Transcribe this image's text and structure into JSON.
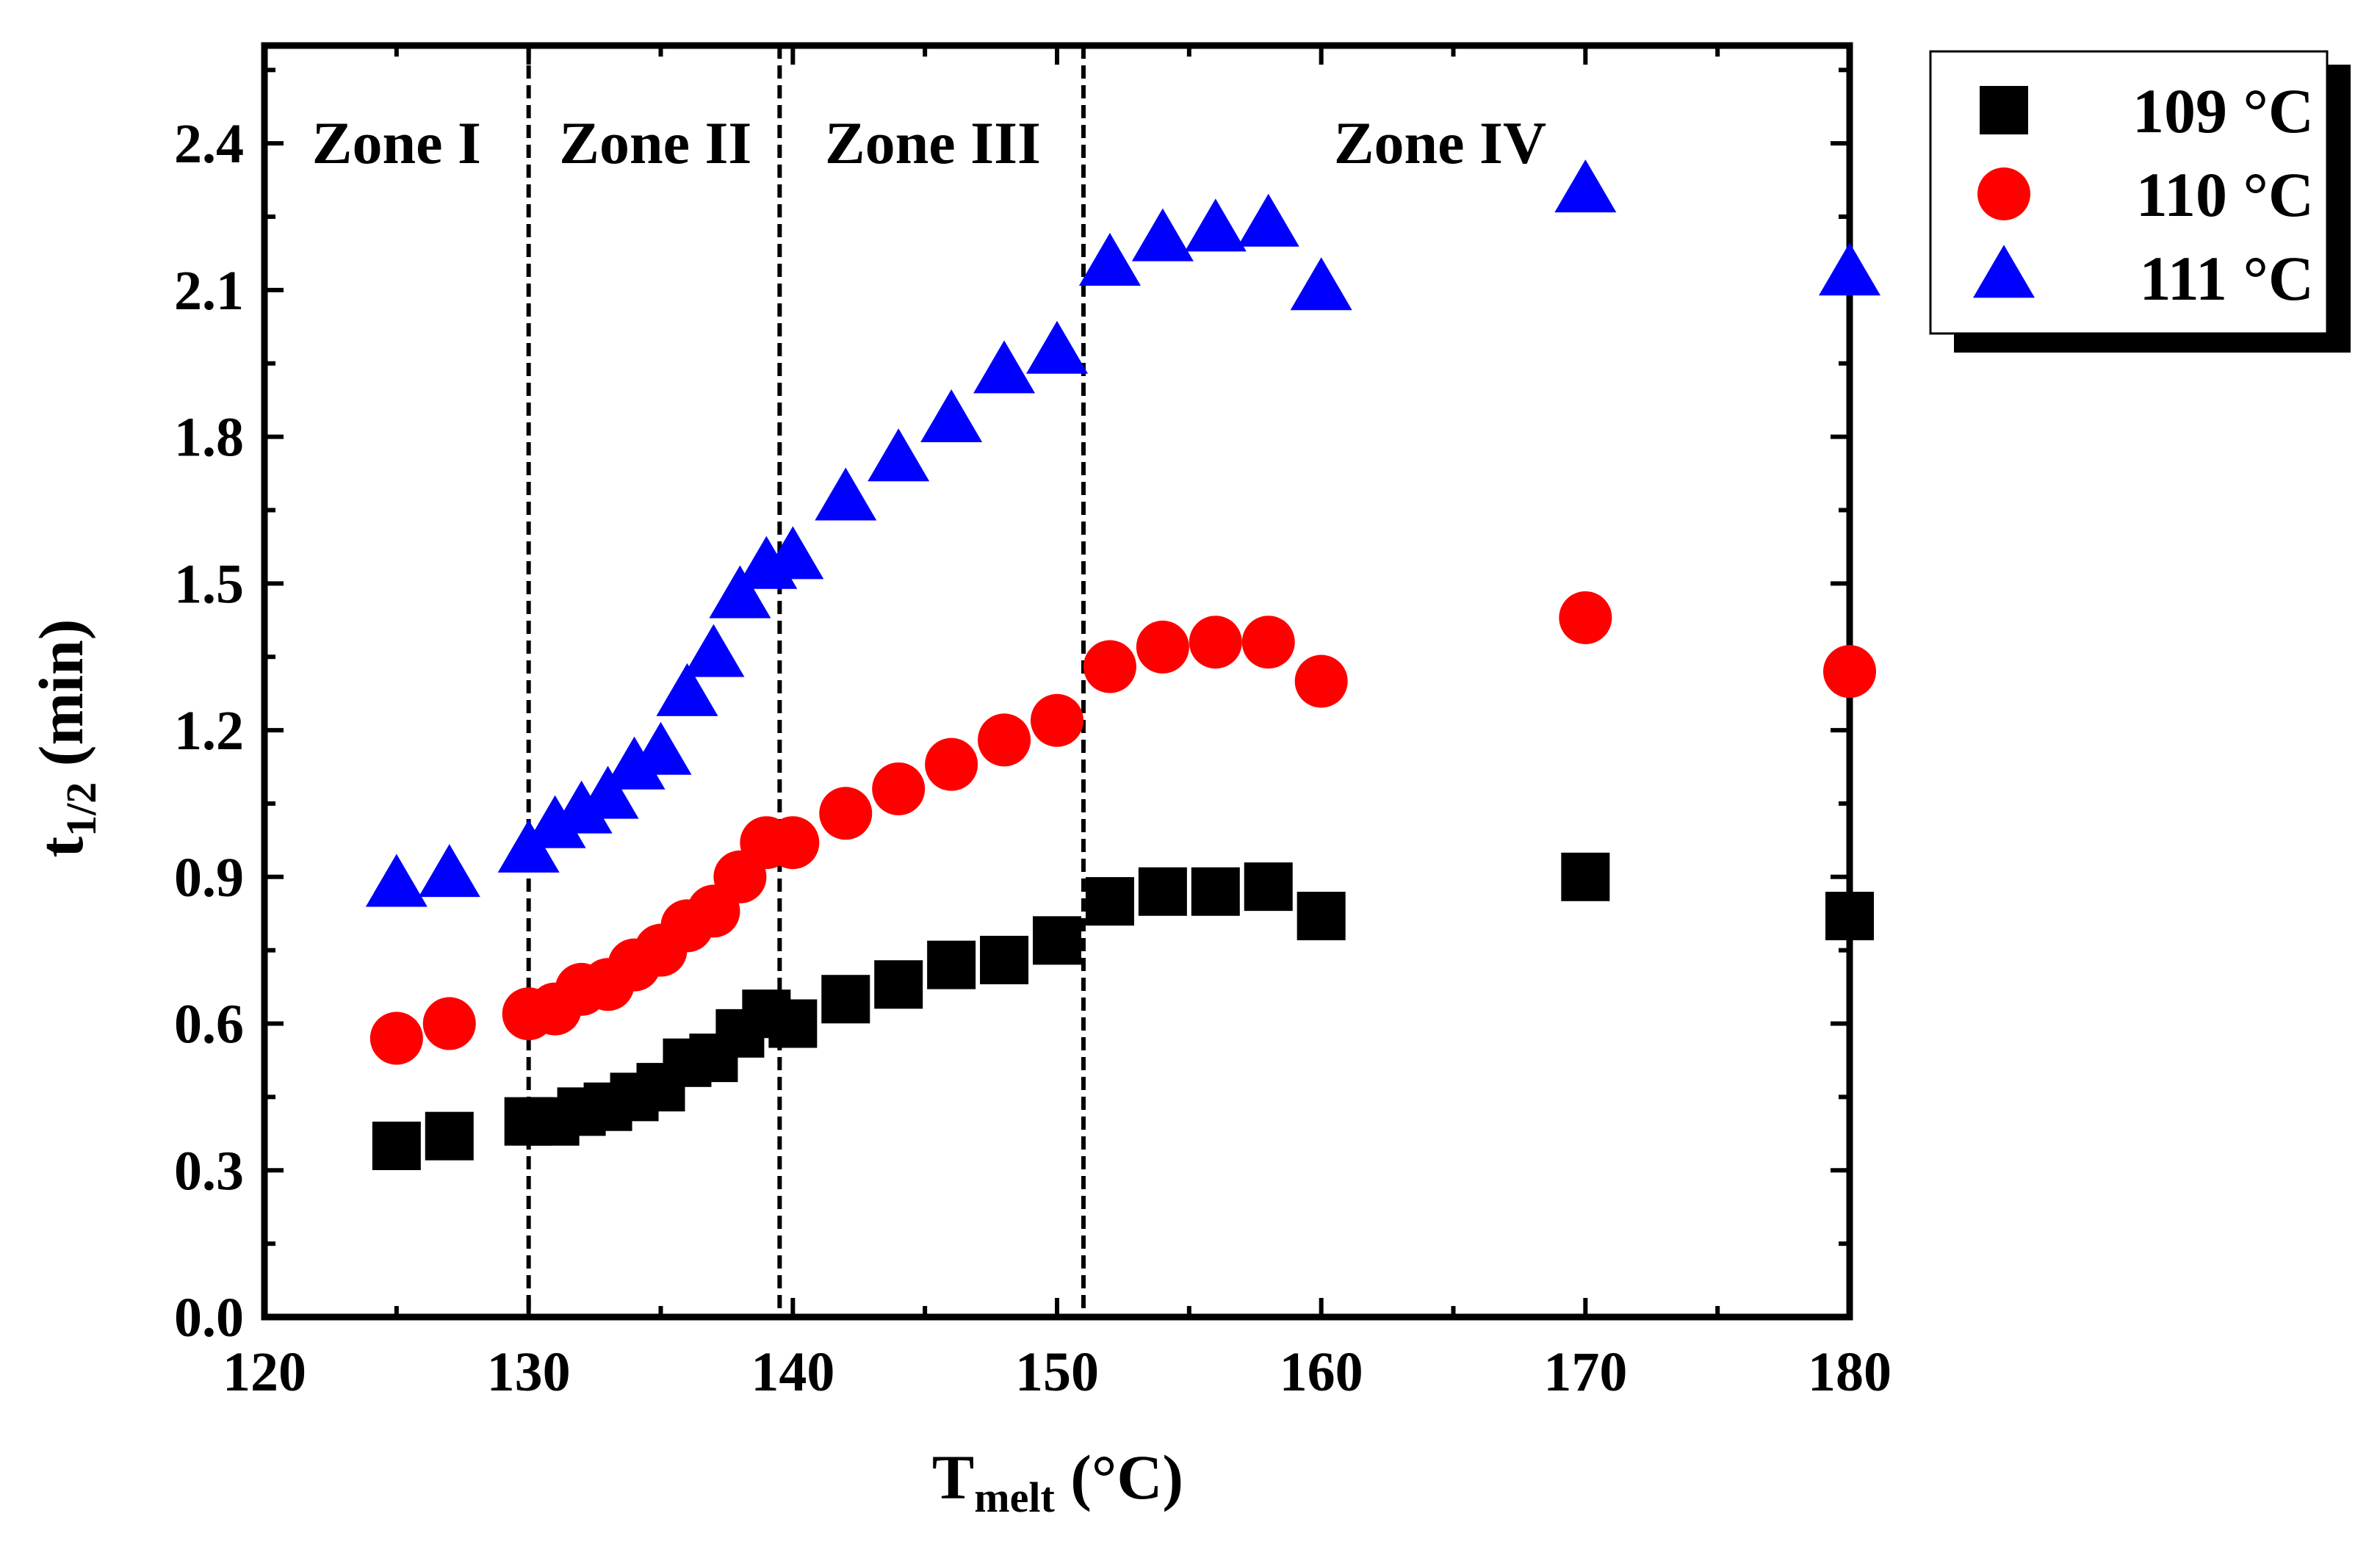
{
  "chart_data": {
    "type": "scatter",
    "title": "",
    "xlabel_main": "T",
    "xlabel_sub": "melt",
    "xlabel_unit": " (°C)",
    "ylabel_main": "t",
    "ylabel_sub": "1/2",
    "ylabel_unit": " (min)",
    "xlim": [
      120,
      180
    ],
    "ylim": [
      0,
      2.6
    ],
    "xticks": [
      120,
      130,
      140,
      150,
      160,
      170,
      180
    ],
    "xtick_labels": [
      "120",
      "130",
      "140",
      "150",
      "160",
      "170",
      "180"
    ],
    "yticks": [
      0.0,
      0.3,
      0.6,
      0.9,
      1.2,
      1.5,
      1.8,
      2.1,
      2.4
    ],
    "ytick_labels": [
      "0.0",
      "0.3",
      "0.6",
      "0.9",
      "1.2",
      "1.5",
      "1.8",
      "2.1",
      "2.4"
    ],
    "grid": false,
    "legend_position": "top-right, outside plot",
    "zone_boundaries": [
      130,
      139.5,
      151
    ],
    "zones": [
      {
        "label": "Zone I",
        "x": 125
      },
      {
        "label": "Zone II",
        "x": 134.8
      },
      {
        "label": "Zone III",
        "x": 145.3
      },
      {
        "label": "Zone IV",
        "x": 164.5
      }
    ],
    "series": [
      {
        "name": "109 °C",
        "marker": "square",
        "color": "#000000",
        "x": [
          125,
          127,
          130,
          131,
          132,
          133,
          134,
          135,
          136,
          137,
          138,
          139,
          140,
          142,
          144,
          146,
          148,
          150,
          152,
          154,
          156,
          158,
          160,
          170,
          180
        ],
        "y": [
          0.35,
          0.37,
          0.4,
          0.4,
          0.42,
          0.43,
          0.45,
          0.47,
          0.52,
          0.53,
          0.58,
          0.62,
          0.6,
          0.65,
          0.68,
          0.72,
          0.73,
          0.77,
          0.85,
          0.87,
          0.87,
          0.88,
          0.82,
          0.9,
          0.82
        ]
      },
      {
        "name": "110 °C",
        "marker": "circle",
        "color": "#ff0000",
        "x": [
          125,
          127,
          130,
          131,
          132,
          133,
          134,
          135,
          136,
          137,
          138,
          139,
          140,
          142,
          144,
          146,
          148,
          150,
          152,
          154,
          156,
          158,
          160,
          170,
          180
        ],
        "y": [
          0.57,
          0.6,
          0.62,
          0.63,
          0.67,
          0.68,
          0.72,
          0.75,
          0.8,
          0.83,
          0.9,
          0.97,
          0.97,
          1.03,
          1.08,
          1.13,
          1.18,
          1.22,
          1.33,
          1.37,
          1.38,
          1.38,
          1.3,
          1.43,
          1.32
        ]
      },
      {
        "name": "111 °C",
        "marker": "triangle",
        "color": "#0000ff",
        "x": [
          125,
          127,
          130,
          131,
          132,
          133,
          134,
          135,
          136,
          137,
          138,
          139,
          140,
          142,
          144,
          146,
          148,
          150,
          152,
          154,
          156,
          158,
          160,
          170,
          180
        ],
        "y": [
          0.88,
          0.9,
          0.95,
          1.0,
          1.03,
          1.06,
          1.12,
          1.15,
          1.27,
          1.35,
          1.47,
          1.53,
          1.55,
          1.67,
          1.75,
          1.83,
          1.93,
          1.97,
          2.15,
          2.2,
          2.22,
          2.23,
          2.1,
          2.3,
          2.13
        ]
      }
    ]
  }
}
